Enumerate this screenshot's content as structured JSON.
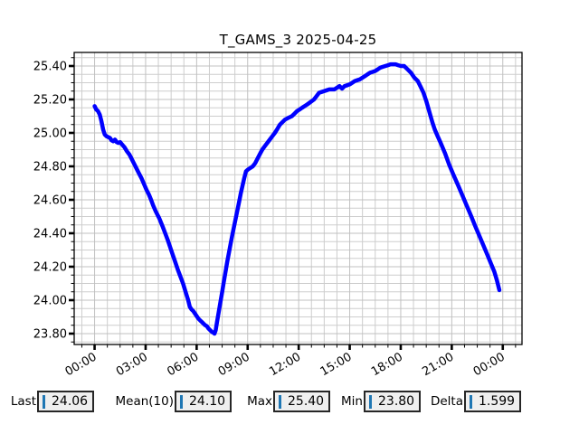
{
  "title": "T_GAMS_3 2025-04-25",
  "colors": {
    "line": "#0000ff",
    "cursor": "#1f77b4",
    "grid_major": "#c0c0c0",
    "grid_minor": "#cdcdcd",
    "frame": "#000000",
    "box_bg": "#efefef",
    "box_border": "#262626",
    "background": "#ffffff"
  },
  "stats": {
    "items": [
      {
        "label": "Last",
        "value": "24.06"
      },
      {
        "label": "Mean(10)",
        "value": "24.10"
      },
      {
        "label": "Max",
        "value": "25.40"
      },
      {
        "label": "Min",
        "value": "23.80"
      },
      {
        "label": "Delta",
        "value": "1.599"
      }
    ]
  },
  "chart_data": {
    "type": "line",
    "title": "T_GAMS_3 2025-04-25",
    "xlabel": "",
    "ylabel": "",
    "legend": null,
    "grid": true,
    "xlim_hours": [
      -1.2,
      25.13
    ],
    "ylim": [
      23.735,
      25.481
    ],
    "x_ticks": [
      {
        "h": 0,
        "label": "00:00"
      },
      {
        "h": 3,
        "label": "03:00"
      },
      {
        "h": 6,
        "label": "06:00"
      },
      {
        "h": 9,
        "label": "09:00"
      },
      {
        "h": 12,
        "label": "12:00"
      },
      {
        "h": 15,
        "label": "15:00"
      },
      {
        "h": 18,
        "label": "18:00"
      },
      {
        "h": 21,
        "label": "21:00"
      },
      {
        "h": 24,
        "label": "00:00"
      }
    ],
    "y_ticks": [
      23.8,
      24.0,
      24.2,
      24.4,
      24.6,
      24.8,
      25.0,
      25.2,
      25.4
    ],
    "minor_x_step_hours": 0.75,
    "minor_y_step": 0.05,
    "series": [
      {
        "name": "T_GAMS_3",
        "color": "#0000ff",
        "points_time_hours_vs_degC": [
          [
            0.0,
            25.16
          ],
          [
            0.1,
            25.14
          ],
          [
            0.2,
            25.13
          ],
          [
            0.3,
            25.11
          ],
          [
            0.4,
            25.07
          ],
          [
            0.5,
            25.02
          ],
          [
            0.6,
            24.99
          ],
          [
            0.7,
            24.98
          ],
          [
            0.8,
            24.975
          ],
          [
            0.9,
            24.97
          ],
          [
            1.0,
            24.955
          ],
          [
            1.1,
            24.95
          ],
          [
            1.2,
            24.96
          ],
          [
            1.3,
            24.945
          ],
          [
            1.4,
            24.94
          ],
          [
            1.5,
            24.945
          ],
          [
            1.62,
            24.93
          ],
          [
            1.75,
            24.915
          ],
          [
            1.9,
            24.89
          ],
          [
            2.05,
            24.87
          ],
          [
            2.15,
            24.85
          ],
          [
            2.3,
            24.82
          ],
          [
            2.45,
            24.79
          ],
          [
            2.6,
            24.76
          ],
          [
            2.75,
            24.73
          ],
          [
            2.9,
            24.695
          ],
          [
            3.05,
            24.66
          ],
          [
            3.2,
            24.63
          ],
          [
            3.32,
            24.6
          ],
          [
            3.45,
            24.565
          ],
          [
            3.6,
            24.53
          ],
          [
            3.7,
            24.51
          ],
          [
            3.8,
            24.49
          ],
          [
            3.9,
            24.465
          ],
          [
            4.0,
            24.44
          ],
          [
            4.15,
            24.4
          ],
          [
            4.3,
            24.36
          ],
          [
            4.45,
            24.315
          ],
          [
            4.6,
            24.27
          ],
          [
            4.75,
            24.225
          ],
          [
            4.9,
            24.18
          ],
          [
            5.05,
            24.14
          ],
          [
            5.2,
            24.1
          ],
          [
            5.35,
            24.05
          ],
          [
            5.5,
            24.0
          ],
          [
            5.6,
            23.96
          ],
          [
            5.7,
            23.945
          ],
          [
            5.8,
            23.935
          ],
          [
            5.9,
            23.92
          ],
          [
            6.0,
            23.905
          ],
          [
            6.1,
            23.89
          ],
          [
            6.2,
            23.88
          ],
          [
            6.3,
            23.87
          ],
          [
            6.4,
            23.86
          ],
          [
            6.5,
            23.85
          ],
          [
            6.6,
            23.845
          ],
          [
            6.7,
            23.83
          ],
          [
            6.8,
            23.82
          ],
          [
            6.9,
            23.81
          ],
          [
            7.0,
            23.805
          ],
          [
            7.05,
            23.8
          ],
          [
            7.12,
            23.82
          ],
          [
            7.2,
            23.87
          ],
          [
            7.3,
            23.93
          ],
          [
            7.4,
            23.99
          ],
          [
            7.5,
            24.05
          ],
          [
            7.6,
            24.11
          ],
          [
            7.7,
            24.17
          ],
          [
            7.8,
            24.23
          ],
          [
            7.9,
            24.285
          ],
          [
            8.0,
            24.34
          ],
          [
            8.1,
            24.39
          ],
          [
            8.2,
            24.44
          ],
          [
            8.3,
            24.49
          ],
          [
            8.4,
            24.54
          ],
          [
            8.5,
            24.59
          ],
          [
            8.6,
            24.64
          ],
          [
            8.7,
            24.685
          ],
          [
            8.8,
            24.73
          ],
          [
            8.9,
            24.77
          ],
          [
            9.0,
            24.78
          ],
          [
            9.15,
            24.79
          ],
          [
            9.3,
            24.8
          ],
          [
            9.45,
            24.82
          ],
          [
            9.6,
            24.85
          ],
          [
            9.75,
            24.88
          ],
          [
            9.86,
            24.9
          ],
          [
            10.0,
            24.92
          ],
          [
            10.15,
            24.94
          ],
          [
            10.3,
            24.96
          ],
          [
            10.45,
            24.98
          ],
          [
            10.6,
            25.0
          ],
          [
            10.75,
            25.025
          ],
          [
            10.9,
            25.05
          ],
          [
            11.05,
            25.065
          ],
          [
            11.2,
            25.08
          ],
          [
            11.4,
            25.09
          ],
          [
            11.6,
            25.1
          ],
          [
            11.75,
            25.115
          ],
          [
            11.9,
            25.13
          ],
          [
            12.05,
            25.14
          ],
          [
            12.2,
            25.15
          ],
          [
            12.35,
            25.16
          ],
          [
            12.5,
            25.17
          ],
          [
            12.7,
            25.185
          ],
          [
            12.9,
            25.2
          ],
          [
            13.05,
            25.22
          ],
          [
            13.2,
            25.24
          ],
          [
            13.35,
            25.245
          ],
          [
            13.5,
            25.25
          ],
          [
            13.65,
            25.255
          ],
          [
            13.8,
            25.26
          ],
          [
            13.95,
            25.26
          ],
          [
            14.1,
            25.26
          ],
          [
            14.25,
            25.27
          ],
          [
            14.4,
            25.28
          ],
          [
            14.55,
            25.265
          ],
          [
            14.7,
            25.28
          ],
          [
            14.85,
            25.285
          ],
          [
            15.0,
            25.29
          ],
          [
            15.15,
            25.3
          ],
          [
            15.3,
            25.31
          ],
          [
            15.45,
            25.315
          ],
          [
            15.6,
            25.32
          ],
          [
            15.75,
            25.33
          ],
          [
            15.9,
            25.34
          ],
          [
            16.05,
            25.35
          ],
          [
            16.2,
            25.36
          ],
          [
            16.35,
            25.365
          ],
          [
            16.5,
            25.37
          ],
          [
            16.65,
            25.38
          ],
          [
            16.8,
            25.39
          ],
          [
            16.95,
            25.395
          ],
          [
            17.1,
            25.4
          ],
          [
            17.25,
            25.405
          ],
          [
            17.4,
            25.41
          ],
          [
            17.55,
            25.41
          ],
          [
            17.7,
            25.41
          ],
          [
            17.85,
            25.405
          ],
          [
            18.0,
            25.4
          ],
          [
            18.2,
            25.4
          ],
          [
            18.4,
            25.38
          ],
          [
            18.6,
            25.36
          ],
          [
            18.8,
            25.33
          ],
          [
            19.0,
            25.31
          ],
          [
            19.15,
            25.28
          ],
          [
            19.34,
            25.24
          ],
          [
            19.5,
            25.19
          ],
          [
            19.7,
            25.12
          ],
          [
            19.87,
            25.06
          ],
          [
            20.0,
            25.02
          ],
          [
            20.15,
            24.985
          ],
          [
            20.35,
            24.94
          ],
          [
            20.6,
            24.88
          ],
          [
            20.85,
            24.81
          ],
          [
            21.1,
            24.75
          ],
          [
            21.4,
            24.68
          ],
          [
            21.65,
            24.62
          ],
          [
            21.9,
            24.56
          ],
          [
            22.15,
            24.5
          ],
          [
            22.35,
            24.45
          ],
          [
            22.6,
            24.39
          ],
          [
            22.85,
            24.33
          ],
          [
            23.1,
            24.27
          ],
          [
            23.3,
            24.22
          ],
          [
            23.5,
            24.17
          ],
          [
            23.65,
            24.12
          ],
          [
            23.8,
            24.06
          ]
        ]
      }
    ],
    "stats_shown": {
      "last": 24.06,
      "mean_10": 24.1,
      "max": 25.4,
      "min": 23.8,
      "delta": 1.599
    }
  }
}
